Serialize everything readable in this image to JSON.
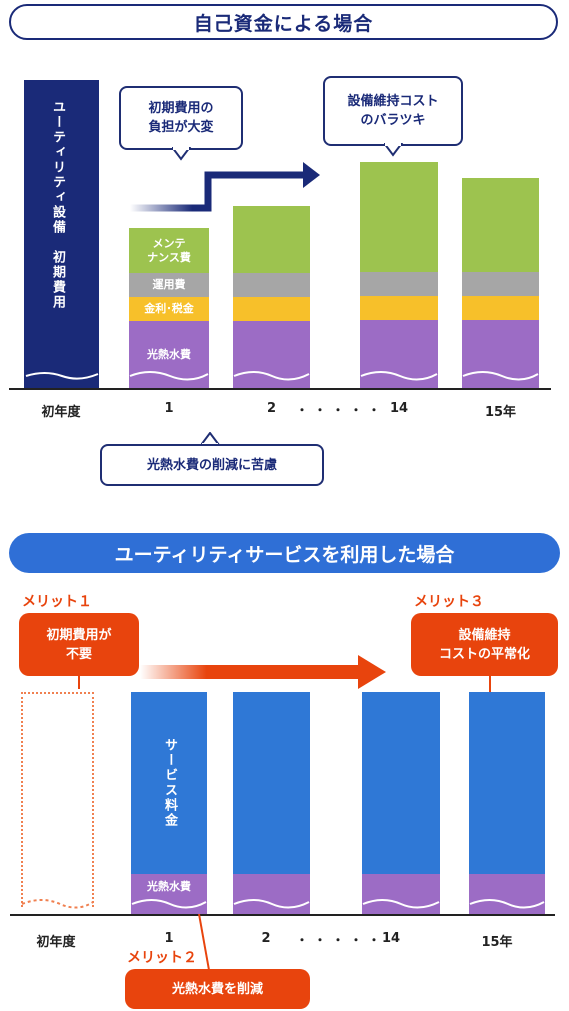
{
  "section1": {
    "title": "自己資金による場合",
    "initial_bar_label": "ユーティリティ設備　初期費用",
    "bubble_left": "初期費用の\n負担が大変",
    "bubble_right": "設備維持コスト\nのバラツキ",
    "bubble_bottom": "光熱水費の削減に苦慮",
    "segments": {
      "maintenance": "メンテ\nナンス費",
      "operation": "運用費",
      "interest_tax": "金利･税金",
      "utility": "光熱水費"
    },
    "x_labels": [
      "初年度",
      "1",
      "2",
      "14",
      "15年"
    ],
    "dots": "・・・・・"
  },
  "section2": {
    "title": "ユーティリティサービスを利用した場合",
    "merit1_label": "メリット１",
    "merit1_text": "初期費用が\n不要",
    "merit2_label": "メリット２",
    "merit2_text": "光熱水費を削減",
    "merit3_label": "メリット３",
    "merit3_text": "設備維持\nコストの平常化",
    "service_fee": "サービス料金",
    "utility": "光熱水費",
    "x_labels": [
      "初年度",
      "1",
      "2",
      "14",
      "15年"
    ],
    "dots": "・・・・・"
  },
  "colors": {
    "navy": "#1a2a78",
    "green": "#9dc34f",
    "gray": "#a6a6a6",
    "yellow": "#f7c02a",
    "purple": "#9c6cc5",
    "blue": "#2f78d6",
    "orange": "#e8440d"
  },
  "chart_data": [
    {
      "type": "bar",
      "title": "自己資金による場合",
      "categories": [
        "初年度",
        "1",
        "2",
        "14",
        "15年"
      ],
      "series": [
        {
          "name": "光熱水費",
          "values": [
            0,
            48,
            48,
            48,
            48
          ]
        },
        {
          "name": "金利･税金",
          "values": [
            0,
            24,
            24,
            24,
            24
          ]
        },
        {
          "name": "運用費",
          "values": [
            0,
            24,
            24,
            24,
            24
          ]
        },
        {
          "name": "メンテナンス費",
          "values": [
            0,
            46,
            68,
            110,
            93
          ]
        },
        {
          "name": "ユーティリティ設備　初期費用",
          "values": [
            304,
            0,
            0,
            0,
            0
          ]
        }
      ]
    },
    {
      "type": "bar",
      "title": "ユーティリティサービスを利用した場合",
      "categories": [
        "初年度",
        "1",
        "2",
        "14",
        "15年"
      ],
      "series": [
        {
          "name": "光熱水費",
          "values": [
            0,
            40,
            40,
            40,
            40
          ]
        },
        {
          "name": "サービス料金",
          "values": [
            0,
            182,
            182,
            182,
            182
          ]
        }
      ]
    }
  ]
}
